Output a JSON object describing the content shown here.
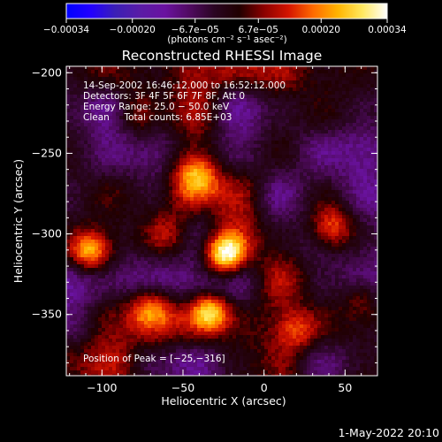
{
  "chart_data": {
    "type": "heatmap",
    "title": "Reconstructed RHESSI Image",
    "xlabel": "Heliocentric X (arcsec)",
    "ylabel": "Heliocentric Y (arcsec)",
    "xlim": [
      -122,
      70
    ],
    "ylim": [
      -388,
      -196
    ],
    "xticks": [
      -100,
      -50,
      0,
      50
    ],
    "xtick_labels": [
      "−100",
      "−50",
      "0",
      "50"
    ],
    "yticks": [
      -200,
      -250,
      -300,
      -350
    ],
    "ytick_labels": [
      "−200",
      "−250",
      "−300",
      "−350"
    ],
    "colorbar": {
      "range": [
        -0.00034,
        0.00034
      ],
      "ticks": [
        -0.00034,
        -0.0002,
        -6.7e-05,
        6.7e-05,
        0.0002,
        0.00034
      ],
      "tick_labels": [
        "−0.00034",
        "−0.00020",
        "−6.7e−05",
        "6.7e−05",
        "0.00020",
        "0.00034"
      ],
      "colors": [
        "#0000ff",
        "#2200ff",
        "#3b1fb5",
        "#5a1ca6",
        "#6a12a0",
        "#500a60",
        "#2a0522",
        "#200000",
        "#8a0000",
        "#d41400",
        "#ff6a00",
        "#ffb400",
        "#ffe860",
        "#ffffff"
      ],
      "unit_label": "(photons cm⁻² s⁻¹ asec⁻²)"
    },
    "info_lines": [
      "14-Sep-2002 16:46:12.000 to 16:52:12.000",
      "Detectors: 3F 4F 5F 6F 7F 8F, Att 0",
      "Energy Range: 25.0 − 50.0 keV",
      "Clean     Total counts: 6.85E+03"
    ],
    "peak_label": "Position of Peak = [−25,−316]",
    "peak": [
      -25,
      -316
    ],
    "sources": [
      {
        "x": -24,
        "y": -313,
        "amplitude": 0.00034,
        "sigma": 9
      },
      {
        "x": -108,
        "y": -311,
        "amplitude": 0.00026,
        "sigma": 9
      },
      {
        "x": -33,
        "y": -348,
        "amplitude": 0.00024,
        "sigma": 8
      },
      {
        "x": -42,
        "y": -265,
        "amplitude": 0.00022,
        "sigma": 10
      },
      {
        "x": 42,
        "y": -296,
        "amplitude": 0.00022,
        "sigma": 10
      },
      {
        "x": -70,
        "y": -345,
        "amplitude": 0.00016,
        "sigma": 9
      },
      {
        "x": -60,
        "y": -300,
        "amplitude": 0.00014,
        "sigma": 11
      },
      {
        "x": -80,
        "y": -225,
        "amplitude": 0.00012,
        "sigma": 10
      },
      {
        "x": 20,
        "y": -360,
        "amplitude": 0.00013,
        "sigma": 9
      },
      {
        "x": 60,
        "y": -340,
        "amplitude": 0.0001,
        "sigma": 8
      }
    ],
    "timestamp": "1-May-2022 20:10"
  }
}
